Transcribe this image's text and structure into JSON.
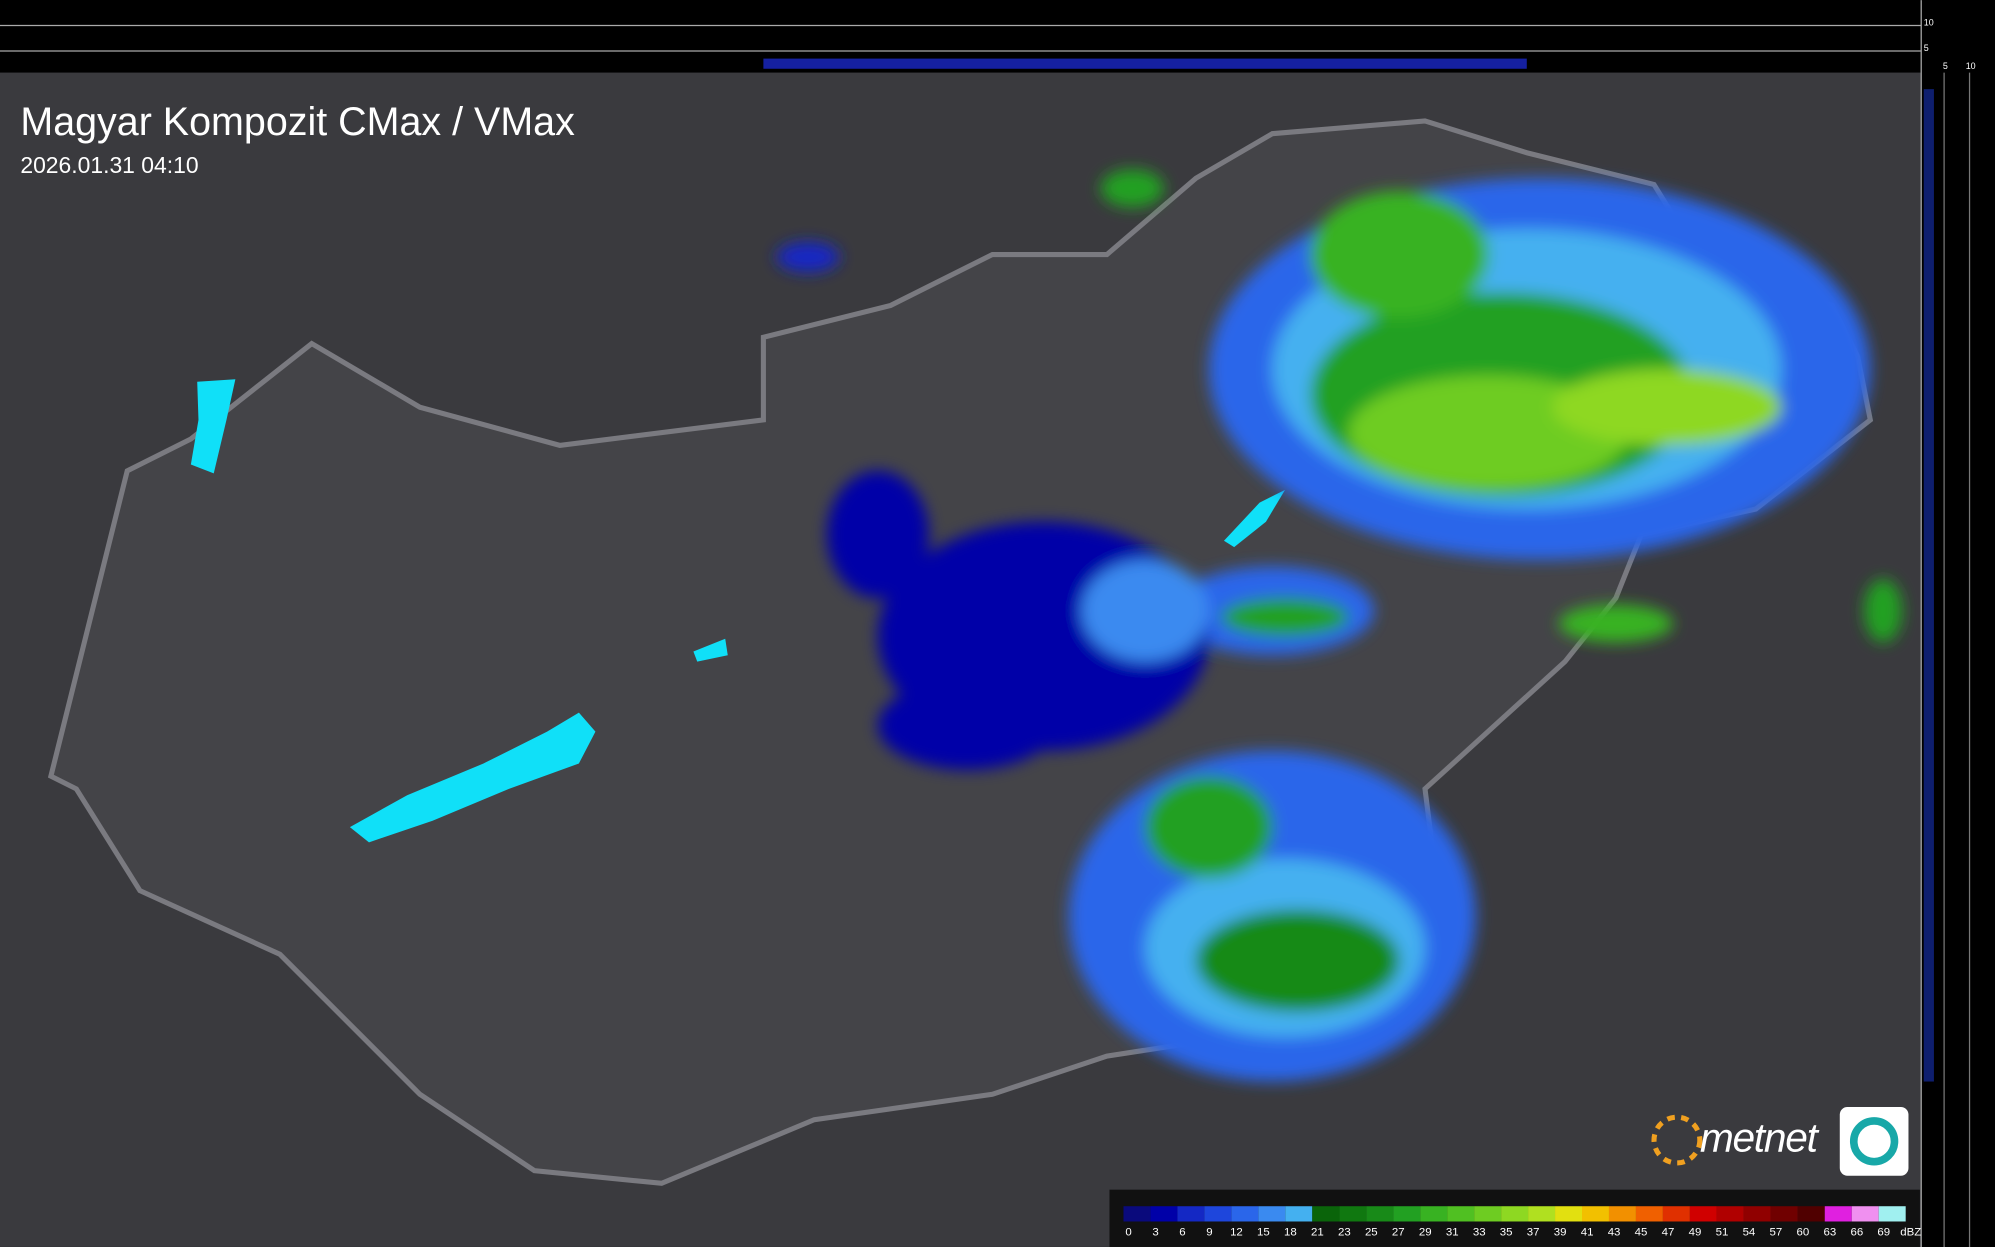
{
  "header": {
    "title": "Magyar Kompozit CMax / VMax",
    "timestamp": "2026.01.31 04:10"
  },
  "side_axis": {
    "top_labels": [
      "10",
      "5"
    ],
    "corner_labels": [
      "5",
      "10"
    ]
  },
  "logo": "metnet",
  "scale": {
    "unit": "dBZ",
    "labels": [
      0,
      3,
      6,
      9,
      12,
      15,
      18,
      21,
      23,
      25,
      27,
      29,
      31,
      33,
      35,
      37,
      39,
      41,
      43,
      45,
      47,
      49,
      51,
      54,
      57,
      60,
      63,
      66,
      69
    ],
    "colors": [
      "#0a0a7c",
      "#0000a8",
      "#1428c4",
      "#1e46dc",
      "#2a66ea",
      "#3a8af0",
      "#44b0f0",
      "#0a640a",
      "#107810",
      "#188a18",
      "#22a022",
      "#38b222",
      "#50c022",
      "#6ecc22",
      "#8ed822",
      "#b0e020",
      "#e2e010",
      "#f2c000",
      "#f29000",
      "#f06000",
      "#e03000",
      "#d00000",
      "#b00000",
      "#900000",
      "#700000",
      "#500000",
      "#e020e0",
      "#f090f0",
      "#a0f0f0"
    ]
  }
}
